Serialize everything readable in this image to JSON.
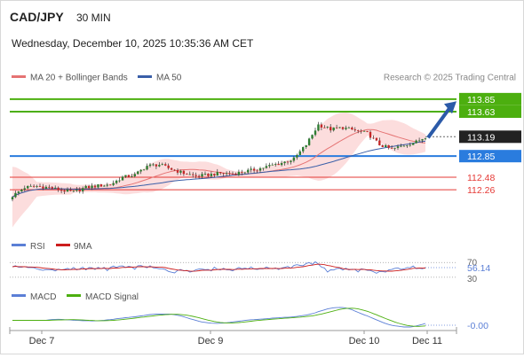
{
  "header": {
    "pair": "CAD/JPY",
    "interval": "30 MIN",
    "datetime": "Wednesday, December 10, 2025 10:35:36 AM CET",
    "source": "Research © 2025 Trading Central"
  },
  "legend": {
    "ma20_label": "MA 20 + Bollinger Bands",
    "ma50_label": "MA 50",
    "rsi_label": "RSI",
    "rsi_ma_label": "9MA",
    "macd_label": "MACD",
    "macd_signal_label": "MACD Signal"
  },
  "colors": {
    "candle_up": "#2e7d32",
    "candle_down": "#c62828",
    "ma20": "#e57373",
    "bollinger_fill": "#fbd5d5",
    "ma50": "#3a5fa8",
    "target": "#4caf0f",
    "pivot": "#2a7cde",
    "support": "#e53935",
    "last": "#222222",
    "arrow": "#2b5aa8",
    "rsi": "#5b7fd6",
    "rsi_ma": "#cc1d1d",
    "macd": "#5b7fd6",
    "macd_signal": "#4caf0f"
  },
  "chart_data": [
    {
      "type": "candlestick",
      "panel": "price",
      "x_labels": [
        "Dec 7",
        "Dec 9",
        "Dec 10",
        "Dec 11"
      ],
      "y_range": [
        111.5,
        114.05
      ],
      "last_close": 113.19,
      "levels": [
        {
          "value": 113.85,
          "label": "113.85",
          "role": "target"
        },
        {
          "value": 113.63,
          "label": "113.63",
          "role": "target"
        },
        {
          "value": 112.85,
          "label": "112.85",
          "role": "pivot"
        },
        {
          "value": 112.48,
          "label": "112.48",
          "role": "support"
        },
        {
          "value": 112.26,
          "label": "112.26",
          "role": "support"
        }
      ],
      "last_label": "113.19",
      "close_points": [
        [
          0,
          112.15
        ],
        [
          4,
          112.3
        ],
        [
          8,
          112.32
        ],
        [
          12,
          112.3
        ],
        [
          16,
          112.25
        ],
        [
          20,
          112.22
        ],
        [
          24,
          112.3
        ],
        [
          28,
          112.33
        ],
        [
          32,
          112.35
        ],
        [
          36,
          112.48
        ],
        [
          40,
          112.52
        ],
        [
          44,
          112.68
        ],
        [
          48,
          112.7
        ],
        [
          52,
          112.62
        ],
        [
          56,
          112.55
        ],
        [
          60,
          112.5
        ],
        [
          64,
          112.52
        ],
        [
          68,
          112.55
        ],
        [
          72,
          112.54
        ],
        [
          76,
          112.58
        ],
        [
          80,
          112.62
        ],
        [
          84,
          112.68
        ],
        [
          88,
          112.73
        ],
        [
          92,
          112.8
        ],
        [
          96,
          113.05
        ],
        [
          100,
          113.4
        ],
        [
          104,
          113.32
        ],
        [
          108,
          113.35
        ],
        [
          112,
          113.3
        ],
        [
          116,
          113.25
        ],
        [
          120,
          113.05
        ],
        [
          124,
          112.97
        ],
        [
          128,
          113.04
        ],
        [
          132,
          113.1
        ],
        [
          135,
          113.19
        ]
      ],
      "candle_count": 136,
      "rsi_levels": [
        70,
        30
      ],
      "rsi_value": "56.14",
      "macd_value": "-0.00"
    }
  ]
}
